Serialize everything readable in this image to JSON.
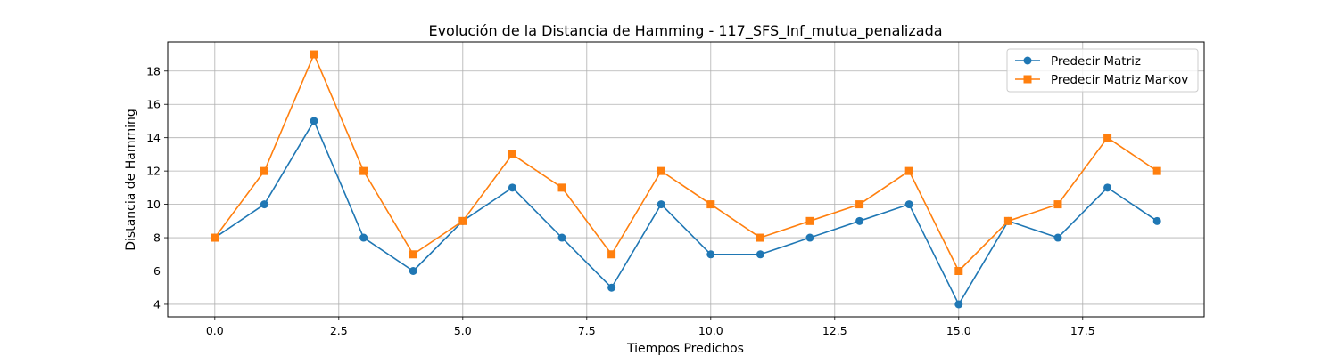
{
  "chart_data": {
    "type": "line",
    "title": "Evolución de la Distancia de Hamming - 117_SFS_Inf_mutua_penalizada",
    "xlabel": "Tiempos Predichos",
    "ylabel": "Distancia de Hamming",
    "xlim": [
      -0.95,
      19.95
    ],
    "ylim": [
      3.25,
      19.75
    ],
    "xticks": [
      0.0,
      2.5,
      5.0,
      7.5,
      10.0,
      12.5,
      15.0,
      17.5
    ],
    "xtick_labels": [
      "0.0",
      "2.5",
      "5.0",
      "7.5",
      "10.0",
      "12.5",
      "15.0",
      "17.5"
    ],
    "yticks": [
      4,
      6,
      8,
      10,
      12,
      14,
      16,
      18
    ],
    "ytick_labels": [
      "4",
      "6",
      "8",
      "10",
      "12",
      "14",
      "16",
      "18"
    ],
    "grid": true,
    "legend_position": "top-right",
    "x": [
      0,
      1,
      2,
      3,
      4,
      5,
      6,
      7,
      8,
      9,
      10,
      11,
      12,
      13,
      14,
      15,
      16,
      17,
      18,
      19
    ],
    "series": [
      {
        "name": "Predecir Matriz",
        "color": "#1f77b4",
        "marker": "circle",
        "values": [
          8,
          10,
          15,
          8,
          6,
          9,
          11,
          8,
          5,
          10,
          7,
          7,
          8,
          9,
          10,
          4,
          9,
          8,
          11,
          9
        ]
      },
      {
        "name": "Predecir Matriz Markov",
        "color": "#ff7f0e",
        "marker": "square",
        "values": [
          8,
          12,
          19,
          12,
          7,
          9,
          13,
          11,
          7,
          12,
          10,
          8,
          9,
          10,
          12,
          6,
          9,
          10,
          14,
          12
        ]
      }
    ]
  }
}
